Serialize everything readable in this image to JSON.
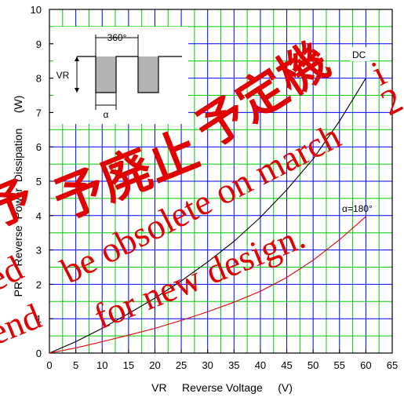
{
  "chart_data": {
    "type": "line",
    "xlabel": "VR     Reverse Voltage     (V)",
    "ylabel": "PR     Reverse  Power  Dissipation     (W)",
    "xlim": [
      0,
      65
    ],
    "ylim": [
      0,
      10
    ],
    "x_ticks": [
      "0",
      "5",
      "10",
      "15",
      "20",
      "25",
      "30",
      "35",
      "40",
      "45",
      "50",
      "55",
      "60",
      "65"
    ],
    "y_ticks": [
      "0",
      "1",
      "2",
      "3",
      "4",
      "5",
      "6",
      "7",
      "8",
      "9",
      "10"
    ],
    "grid": true,
    "series": [
      {
        "name": "DC",
        "color": "#000000",
        "x": [
          0,
          5,
          10,
          15,
          20,
          25,
          30,
          35,
          40,
          45,
          50,
          55,
          60
        ],
        "y": [
          0,
          0.33,
          0.72,
          1.15,
          1.6,
          2.1,
          2.65,
          3.25,
          3.95,
          4.75,
          5.65,
          6.75,
          8.0
        ]
      },
      {
        "name": "α=180°",
        "color": "#e00000",
        "x": [
          0,
          5,
          10,
          15,
          20,
          25,
          30,
          35,
          40,
          45,
          50,
          55,
          60
        ],
        "y": [
          0,
          0.15,
          0.33,
          0.52,
          0.72,
          0.95,
          1.2,
          1.48,
          1.8,
          2.2,
          2.7,
          3.3,
          3.97
        ]
      }
    ],
    "annotations": [
      "DC",
      "α=180°"
    ],
    "inset": {
      "period_label": "360°",
      "amplitude_label": "VR",
      "conduction_label": "α"
    }
  },
  "watermark": {
    "jp_top": "予定機",
    "jp_mid": "予廃止",
    "jp_left": "予",
    "line1": "be obsolete on march",
    "line2": "for new design.",
    "frag1": "ed",
    "frag2": "end",
    "frag3": "i",
    "frag4": "2"
  }
}
